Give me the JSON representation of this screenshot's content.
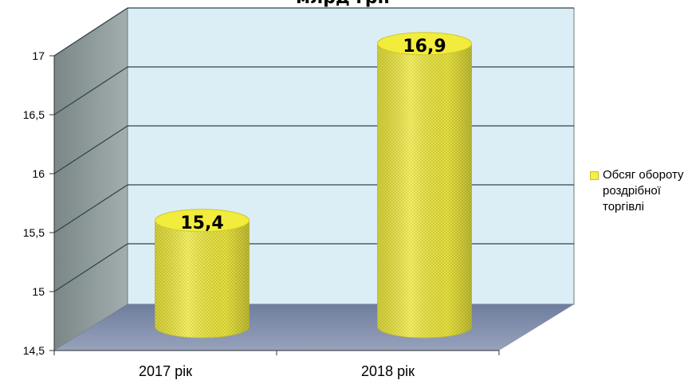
{
  "chart_data": {
    "type": "bar",
    "title": "млрд грн",
    "categories": [
      "2017 рік",
      "2018 рік"
    ],
    "series": [
      {
        "name": "Обсяг обороту роздрібної торгівлі",
        "values": [
          15.4,
          16.9
        ]
      }
    ],
    "value_labels": [
      "15,4",
      "16,9"
    ],
    "ylim": [
      14.5,
      17
    ],
    "y_ticks": [
      14.5,
      15,
      15.5,
      16,
      16.5,
      17
    ],
    "y_tick_labels": [
      "14,5",
      "15",
      "15,5",
      "16",
      "16,5",
      "17"
    ],
    "xlabel": "",
    "ylabel": "",
    "grid": true,
    "legend_position": "right",
    "style": "3d-cylinder",
    "colors": {
      "bar": "#f2ee4a",
      "bar_dark": "#d9d42a",
      "back_wall": "#dbeef5",
      "side_wall": "#8e9a9a",
      "floor": "#7d8aa8",
      "grid": "#1f3a4a"
    }
  }
}
